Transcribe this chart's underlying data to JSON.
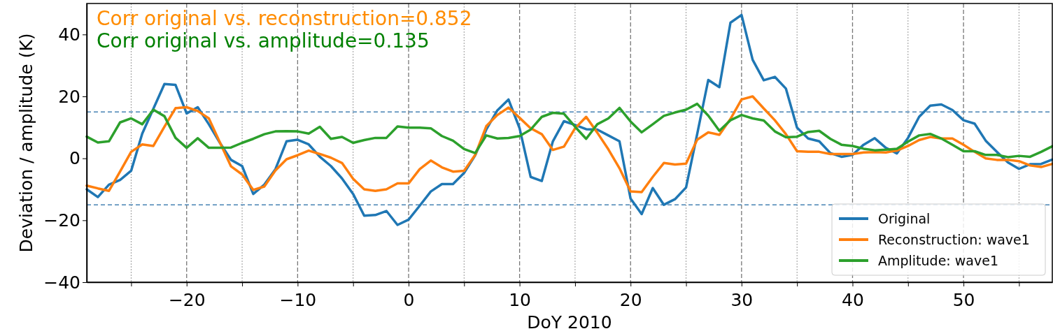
{
  "chart_data": {
    "type": "line",
    "xlabel": "DoY 2010",
    "ylabel": "Deviation / amplitude (K)",
    "annotations": [
      "Corr original vs. reconstruction=0.852",
      "Corr original vs. amplitude=0.135"
    ],
    "x": [
      -29,
      -28,
      -27,
      -26,
      -25,
      -24,
      -23,
      -22,
      -21,
      -20,
      -19,
      -18,
      -17,
      -16,
      -15,
      -14,
      -13,
      -12,
      -11,
      -10,
      -9,
      -8,
      -7,
      -6,
      -5,
      -4,
      -3,
      -2,
      -1,
      0,
      1,
      2,
      3,
      4,
      5,
      6,
      7,
      8,
      9,
      10,
      11,
      12,
      13,
      14,
      15,
      16,
      17,
      18,
      19,
      20,
      21,
      22,
      23,
      24,
      25,
      26,
      27,
      28,
      29,
      30,
      31,
      32,
      33,
      34,
      35,
      36,
      37,
      38,
      39,
      40,
      41,
      42,
      43,
      44,
      45,
      46,
      47,
      48,
      49,
      50,
      51,
      52,
      53,
      54,
      55,
      56,
      57,
      58
    ],
    "series": [
      {
        "name": "Original",
        "color": "#1f77b4",
        "values": [
          -10,
          -12.5,
          -8.5,
          -7,
          -4,
          8,
          16,
          24,
          23.7,
          14.5,
          16.5,
          11,
          5,
          -0.5,
          -2.5,
          -11.5,
          -8.5,
          -3.5,
          5.5,
          6,
          4.5,
          0.5,
          -2.5,
          -6.5,
          -11.5,
          -18.5,
          -18.3,
          -17,
          -21.5,
          -19.8,
          -15.3,
          -10.7,
          -8.3,
          -8.3,
          -4.7,
          1,
          9.3,
          15.5,
          19,
          9.7,
          -6,
          -7.3,
          5.5,
          12,
          10.8,
          9.4,
          9.3,
          7.4,
          5.5,
          -13,
          -18,
          -9.6,
          -15,
          -13.2,
          -9.4,
          7.8,
          25.3,
          23,
          43.8,
          46.3,
          31.8,
          25.2,
          26.3,
          22.5,
          9.9,
          6.4,
          5.5,
          1.7,
          0.5,
          1.1,
          4.4,
          6.5,
          3.4,
          1.6,
          6.6,
          13.4,
          17,
          17.4,
          15.6,
          12.3,
          11.2,
          5.7,
          2.1,
          -1.3,
          -3.4,
          -1.9,
          -1.8,
          -0.4
        ]
      },
      {
        "name": "Reconstruction: wave1",
        "color": "#ff7f0e",
        "values": [
          -8.8,
          -9.7,
          -10.5,
          -4.3,
          2.1,
          4.5,
          4,
          10.2,
          16.2,
          16.5,
          15.3,
          12.9,
          5.1,
          -2.6,
          -5.2,
          -10.2,
          -9.1,
          -3.9,
          -0.3,
          1,
          2.5,
          1.4,
          0.2,
          -1.5,
          -6.6,
          -10,
          -10.5,
          -10,
          -8.1,
          -8.1,
          -3.5,
          -0.7,
          -2.9,
          -4.3,
          -4,
          1.1,
          10.4,
          14,
          16.4,
          13.1,
          9.7,
          7.8,
          2.7,
          3.8,
          9.7,
          13.4,
          8.3,
          2.9,
          -3.2,
          -10.7,
          -10.9,
          -6,
          -1.5,
          -2,
          -1.7,
          6,
          8.4,
          7.6,
          12.7,
          19,
          20,
          16.1,
          12.3,
          7.8,
          2.3,
          2.1,
          2.1,
          1.4,
          1.4,
          1.4,
          1.9,
          2,
          1.9,
          2.5,
          4,
          5.9,
          6.9,
          6.4,
          6.4,
          4.4,
          2.1,
          0,
          -0.5,
          -0.5,
          -0.9,
          -2.3,
          -2.8,
          -1.8
        ]
      },
      {
        "name": "Amplitude: wave1",
        "color": "#2ca02c",
        "values": [
          7,
          5.1,
          5.5,
          11.6,
          12.9,
          11,
          15.7,
          13.6,
          6.6,
          3.4,
          6.5,
          3.4,
          3.4,
          3.5,
          5,
          6.3,
          7.8,
          8.7,
          8.8,
          8.7,
          8,
          10.2,
          6.3,
          6.9,
          5,
          5.9,
          6.6,
          6.6,
          10.3,
          9.9,
          9.9,
          9.7,
          7.2,
          5.7,
          3,
          1.7,
          7.4,
          6.4,
          6.6,
          7.2,
          9.3,
          13.4,
          14.7,
          14.4,
          10.2,
          6.3,
          11,
          12.9,
          16.3,
          11.9,
          8.4,
          11,
          13.7,
          14.8,
          15.7,
          17.6,
          13.8,
          8.9,
          12.3,
          14,
          12.9,
          12.2,
          8.7,
          6.8,
          7,
          8.5,
          8.9,
          6.3,
          4.4,
          4,
          3.1,
          2.6,
          2.8,
          3.1,
          5.4,
          7.4,
          7.9,
          6.4,
          4.4,
          2.3,
          2.3,
          1.1,
          1.1,
          0.4,
          0.8,
          0.5,
          2.1,
          3.9
        ]
      }
    ],
    "xlim": [
      -29,
      58
    ],
    "ylim": [
      -40,
      50
    ],
    "xticks": [
      {
        "value": -25,
        "label": null
      },
      -20,
      {
        "value": -15,
        "label": null
      },
      -10,
      {
        "value": -5,
        "label": null
      },
      0,
      {
        "value": 5,
        "label": null
      },
      10,
      {
        "value": 15,
        "label": null
      },
      20,
      {
        "value": 25,
        "label": null
      },
      30,
      {
        "value": 35,
        "label": null
      },
      40,
      {
        "value": 45,
        "label": null
      },
      50,
      {
        "value": 55,
        "label": null
      }
    ],
    "yticks": [
      -40,
      -20,
      0,
      20,
      40
    ],
    "grid": "x",
    "legend": "bottom right",
    "line_style": "solid",
    "marker": "none",
    "ref_lines": [
      {
        "axis": "y",
        "value": 15,
        "color": "#4682b4",
        "line_style": "dashed"
      },
      {
        "axis": "y",
        "value": -15,
        "color": "#4682b4",
        "line_style": "dashed"
      }
    ]
  }
}
